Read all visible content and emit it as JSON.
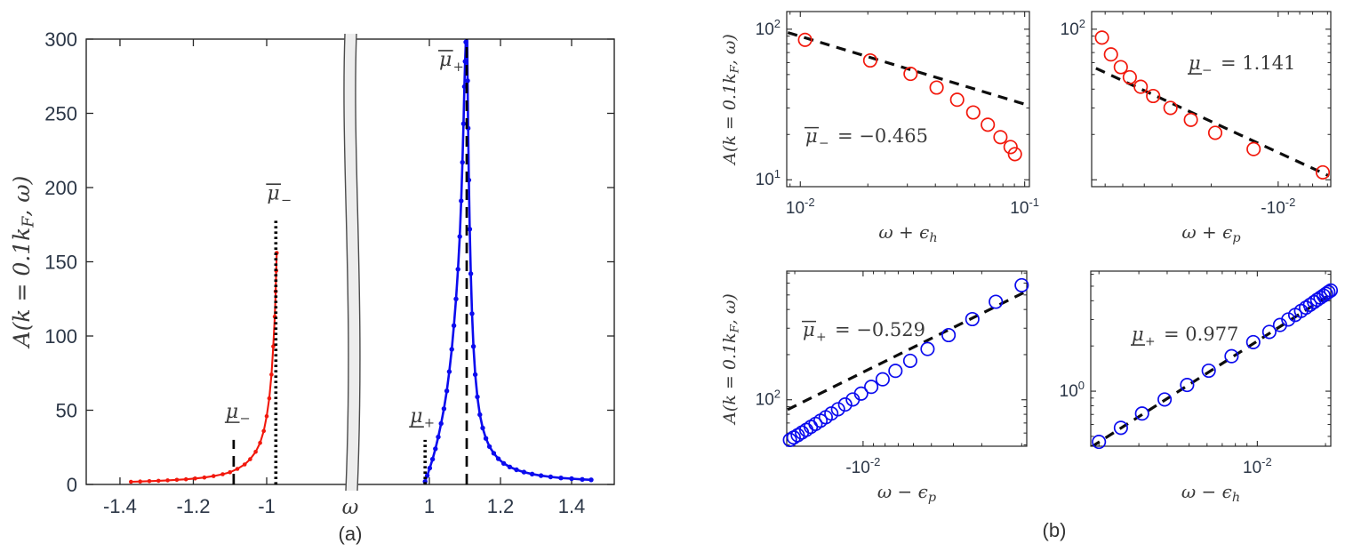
{
  "colors": {
    "red": "#f2180c",
    "blue": "#0b0bee",
    "axis": "#262626",
    "tick_text": "#2b3646",
    "math_text": "#3a3a3a",
    "fit_line": "#0d0d0d",
    "band_fill": "#ededed",
    "band_edge": "#4b4b4b"
  },
  "panel_a": {
    "caption": "(a)",
    "ylabel": {
      "pre": "A(k = 0.1k",
      "sub": "F",
      "post": ", ω)"
    },
    "xlabel": "ω",
    "ylim": [
      0,
      300
    ],
    "yticks": [
      0,
      50,
      100,
      150,
      200,
      250,
      300
    ],
    "xticks_left": [
      -1.4,
      -1.2,
      -1
    ],
    "xticks_right": [
      1,
      1.2,
      1.4
    ],
    "xlim_left": [
      -1.492,
      -0.794
    ],
    "xlim_right": [
      0.805,
      1.52
    ],
    "axis_break_symbol": "ω",
    "series": [
      {
        "name": "hole-branch",
        "color": "red",
        "points": [
          [
            -1.37,
            1.8
          ],
          [
            -1.345,
            2.0
          ],
          [
            -1.32,
            2.2
          ],
          [
            -1.295,
            2.45
          ],
          [
            -1.27,
            2.75
          ],
          [
            -1.245,
            3.1
          ],
          [
            -1.22,
            3.5
          ],
          [
            -1.195,
            4.0
          ],
          [
            -1.17,
            4.7
          ],
          [
            -1.145,
            5.6
          ],
          [
            -1.12,
            6.9
          ],
          [
            -1.1,
            8.2
          ],
          [
            -1.08,
            10.5
          ],
          [
            -1.06,
            13.5
          ],
          [
            -1.045,
            17
          ],
          [
            -1.03,
            22
          ],
          [
            -1.018,
            28
          ],
          [
            -1.008,
            36
          ],
          [
            -1.0,
            46
          ],
          [
            -0.993,
            58
          ],
          [
            -0.987,
            74
          ],
          [
            -0.982,
            93
          ],
          [
            -0.978,
            113
          ],
          [
            -0.9755,
            130
          ],
          [
            -0.974,
            144
          ],
          [
            -0.9725,
            156
          ]
        ]
      },
      {
        "name": "particle-branch",
        "color": "blue",
        "points": [
          [
            0.988,
            2
          ],
          [
            0.994,
            6
          ],
          [
            1.001,
            11
          ],
          [
            1.009,
            17
          ],
          [
            1.017,
            24
          ],
          [
            1.025,
            32
          ],
          [
            1.033,
            41
          ],
          [
            1.041,
            51
          ],
          [
            1.049,
            63
          ],
          [
            1.056,
            76
          ],
          [
            1.063,
            91
          ],
          [
            1.069,
            107
          ],
          [
            1.075,
            125
          ],
          [
            1.0805,
            145
          ],
          [
            1.0855,
            167
          ],
          [
            1.0895,
            191
          ],
          [
            1.093,
            217
          ],
          [
            1.096,
            243
          ],
          [
            1.0985,
            268
          ],
          [
            1.1005,
            285
          ],
          [
            1.1025,
            298
          ],
          [
            1.104,
            310
          ],
          [
            1.106,
            308
          ],
          [
            1.1075,
            272
          ],
          [
            1.109,
            240
          ],
          [
            1.111,
            205
          ],
          [
            1.1135,
            172
          ],
          [
            1.1165,
            142
          ],
          [
            1.12,
            115
          ],
          [
            1.124,
            93
          ],
          [
            1.129,
            74
          ],
          [
            1.135,
            59
          ],
          [
            1.142,
            47
          ],
          [
            1.15,
            38
          ],
          [
            1.159,
            31
          ],
          [
            1.169,
            25.5
          ],
          [
            1.181,
            21
          ],
          [
            1.194,
            17.3
          ],
          [
            1.209,
            14.2
          ],
          [
            1.226,
            11.8
          ],
          [
            1.245,
            9.9
          ],
          [
            1.266,
            8.3
          ],
          [
            1.289,
            7.0
          ],
          [
            1.314,
            5.9
          ],
          [
            1.341,
            5.1
          ],
          [
            1.37,
            4.4
          ],
          [
            1.4,
            3.9
          ],
          [
            1.43,
            3.4
          ],
          [
            1.455,
            3.1
          ]
        ]
      }
    ],
    "markers": [
      {
        "name": "mu-bar-minus",
        "base": "μ",
        "decoration": "overline",
        "sub": "−",
        "x": -0.975,
        "top": 178,
        "style": "dotted"
      },
      {
        "name": "mu-minus",
        "base": "μ",
        "decoration": "underline",
        "sub": "−",
        "x": -1.09,
        "top": 30,
        "style": "dashed"
      },
      {
        "name": "mu-bar-plus",
        "base": "μ",
        "decoration": "overline",
        "sub": "+",
        "x": 1.105,
        "top": 300,
        "style": "dashed"
      },
      {
        "name": "mu-plus",
        "base": "μ",
        "decoration": "underline",
        "sub": "+",
        "x": 0.988,
        "top": 30,
        "style": "dotted"
      }
    ]
  },
  "panel_b": {
    "caption": "(b)",
    "ylabel": {
      "pre": "A(k = 0.1k",
      "sub": "F",
      "post": ", ω)"
    },
    "subplots": [
      {
        "name": "hole-edge-lower",
        "color": "red",
        "has_ylabel": true,
        "xlabel": {
          "pre": "ω + ϵ",
          "sub": "h"
        },
        "xlim": [
          0.0087,
          0.105
        ],
        "ylim": [
          9,
          131
        ],
        "xticks": [
          {
            "v": 0.01,
            "prefix": "",
            "exp": "-2"
          },
          {
            "v": 0.1,
            "prefix": "",
            "exp": "-1"
          }
        ],
        "yticks": [
          {
            "v": 10,
            "exp": "1"
          },
          {
            "v": 100,
            "exp": "2"
          }
        ],
        "annotation": {
          "base": "μ",
          "decoration": "overline",
          "sub": "−",
          "value": "= −0.465"
        },
        "points": [
          [
            0.0105,
            85
          ],
          [
            0.0205,
            62
          ],
          [
            0.031,
            50.5
          ],
          [
            0.0405,
            41
          ],
          [
            0.05,
            34
          ],
          [
            0.059,
            28
          ],
          [
            0.0685,
            23.2
          ],
          [
            0.078,
            19.2
          ],
          [
            0.0865,
            16.5
          ],
          [
            0.0905,
            14.8
          ]
        ],
        "fit_line": [
          [
            0.0088,
            95
          ],
          [
            0.102,
            31.5
          ]
        ]
      },
      {
        "name": "hole-edge-upper",
        "color": "red",
        "has_ylabel": false,
        "xlabel": {
          "pre": "ω + ϵ",
          "sub": "p"
        },
        "xlim": [
          -0.069,
          -0.0058
        ],
        "ylim": [
          9,
          131
        ],
        "xticks": [
          {
            "v": -0.01,
            "prefix": "-",
            "exp": "-2"
          }
        ],
        "yticks": [
          {
            "v": 100,
            "exp": "2"
          }
        ],
        "annotation": {
          "base": "μ",
          "decoration": "underline",
          "sub": "−",
          "value": "= 1.141"
        },
        "points": [
          [
            -0.062,
            88
          ],
          [
            -0.0565,
            68
          ],
          [
            -0.051,
            56
          ],
          [
            -0.0465,
            48
          ],
          [
            -0.0415,
            41.5
          ],
          [
            -0.0365,
            36
          ],
          [
            -0.0305,
            30
          ],
          [
            -0.0247,
            25
          ],
          [
            -0.0192,
            20.5
          ],
          [
            -0.0129,
            16
          ],
          [
            -0.0063,
            11.2
          ]
        ],
        "fit_line": [
          [
            -0.066,
            55
          ],
          [
            -0.0059,
            10.6
          ]
        ]
      },
      {
        "name": "particle-edge-lower",
        "color": "blue",
        "has_ylabel": true,
        "xlabel": {
          "pre": "ω − ϵ",
          "sub": "p"
        },
        "xlim": [
          -0.0217,
          -0.0019
        ],
        "ylim": [
          49,
          721
        ],
        "xticks": [
          {
            "v": -0.01,
            "prefix": "-",
            "exp": "-2"
          }
        ],
        "yticks": [
          {
            "v": 100,
            "exp": "2"
          }
        ],
        "annotation": {
          "base": "μ",
          "decoration": "overline",
          "sub": "+",
          "value": "= −0.529"
        },
        "points": [
          [
            -0.021,
            54
          ],
          [
            -0.0202,
            56
          ],
          [
            -0.0194,
            58
          ],
          [
            -0.0186,
            60.5
          ],
          [
            -0.0178,
            63
          ],
          [
            -0.017,
            66
          ],
          [
            -0.0162,
            69
          ],
          [
            -0.0154,
            72.5
          ],
          [
            -0.0146,
            76.5
          ],
          [
            -0.0138,
            81
          ],
          [
            -0.0129,
            86.5
          ],
          [
            -0.012,
            93
          ],
          [
            -0.0111,
            100.5
          ],
          [
            -0.0102,
            110
          ],
          [
            -0.0092,
            122
          ],
          [
            -0.0082,
            137
          ],
          [
            -0.0072,
            156
          ],
          [
            -0.0062,
            182
          ],
          [
            -0.0052,
            218
          ],
          [
            -0.0042,
            270
          ],
          [
            -0.0033,
            345
          ],
          [
            -0.0026,
            450
          ],
          [
            -0.002,
            580
          ]
        ],
        "fit_line": [
          [
            -0.0215,
            86
          ],
          [
            -0.0019,
            530
          ]
        ]
      },
      {
        "name": "particle-edge-upper",
        "color": "blue",
        "has_ylabel": false,
        "xlabel": {
          "pre": "ω − ϵ",
          "sub": "h"
        },
        "xlim": [
          0.00184,
          0.0211
        ],
        "ylim": [
          0.43,
          6.3
        ],
        "xticks": [
          {
            "v": 0.01,
            "prefix": "",
            "exp": "-2"
          }
        ],
        "yticks": [
          {
            "v": 1,
            "exp": "0"
          }
        ],
        "annotation": {
          "base": "μ",
          "decoration": "underline",
          "sub": "+",
          "value": "= 0.977"
        },
        "points": [
          [
            0.002,
            0.46
          ],
          [
            0.0025,
            0.57
          ],
          [
            0.0031,
            0.71
          ],
          [
            0.0039,
            0.88
          ],
          [
            0.0049,
            1.1
          ],
          [
            0.0061,
            1.37
          ],
          [
            0.0077,
            1.71
          ],
          [
            0.0096,
            2.12
          ],
          [
            0.0113,
            2.48
          ],
          [
            0.0126,
            2.76
          ],
          [
            0.0137,
            3.0
          ],
          [
            0.0147,
            3.22
          ],
          [
            0.0156,
            3.42
          ],
          [
            0.0164,
            3.6
          ],
          [
            0.0171,
            3.76
          ],
          [
            0.0178,
            3.92
          ],
          [
            0.0184,
            4.06
          ],
          [
            0.019,
            4.2
          ],
          [
            0.0196,
            4.33
          ],
          [
            0.0201,
            4.45
          ],
          [
            0.0206,
            4.57
          ],
          [
            0.0211,
            4.68
          ]
        ],
        "fit_line": [
          [
            0.00185,
            0.425
          ],
          [
            0.0211,
            4.42
          ]
        ]
      }
    ]
  }
}
